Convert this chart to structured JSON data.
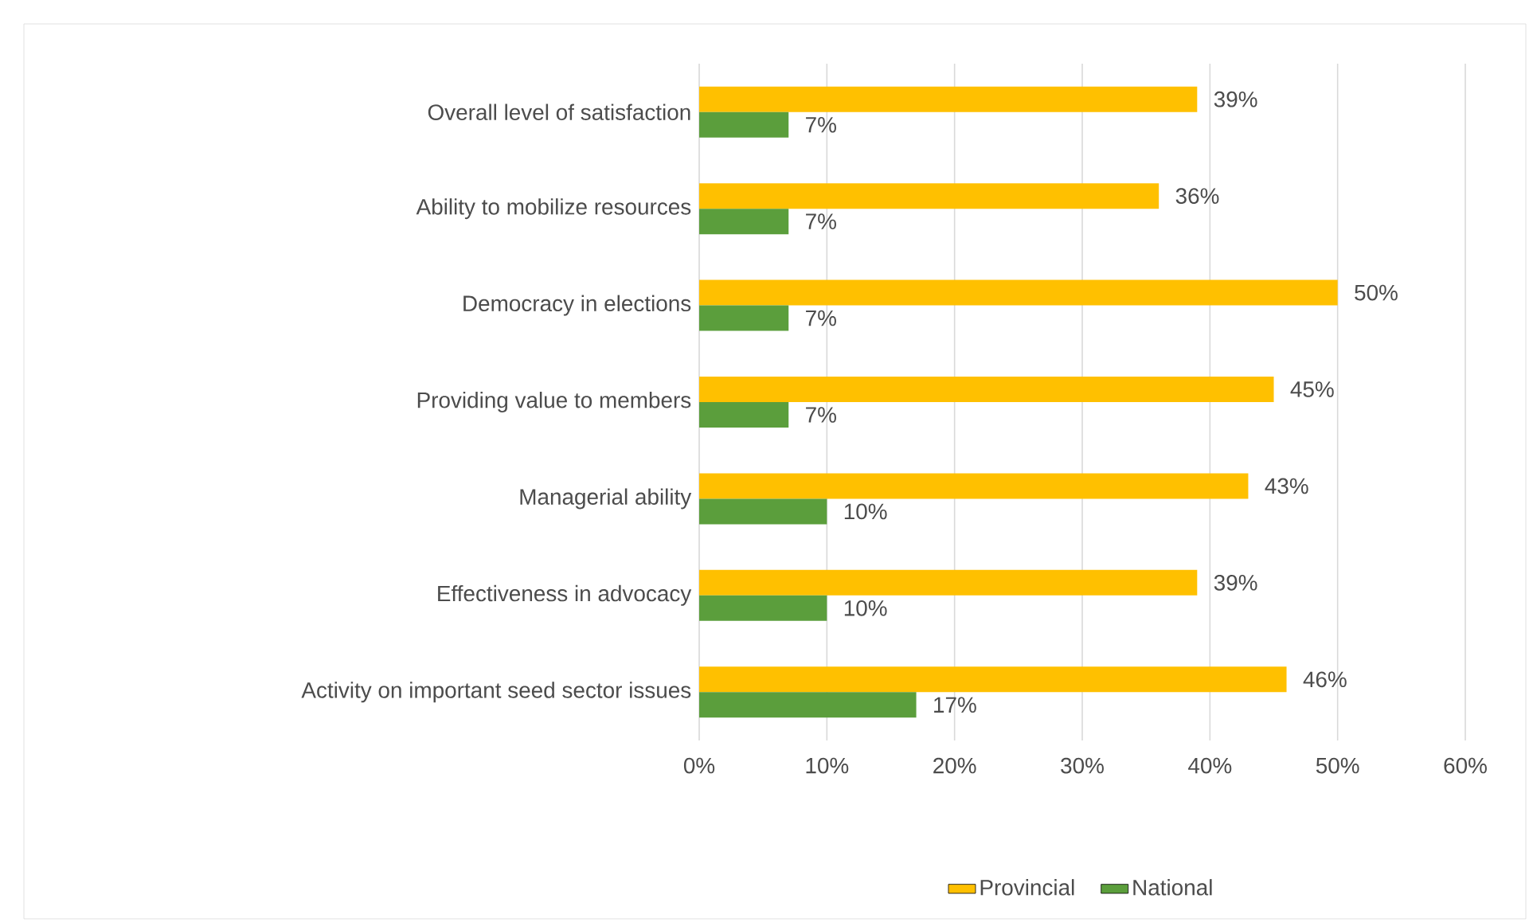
{
  "chart_data": {
    "type": "bar",
    "orientation": "horizontal",
    "categories": [
      "Overall level of satisfaction",
      "Ability to mobilize resources",
      "Democracy in elections",
      "Providing value to members",
      "Managerial ability",
      "Effectiveness in advocacy",
      "Activity on important seed sector issues"
    ],
    "series": [
      {
        "name": "Provincial",
        "color": "#ffc000",
        "values": [
          39,
          36,
          50,
          45,
          43,
          39,
          46
        ],
        "value_labels": [
          "39%",
          "36%",
          "50%",
          "45%",
          "43%",
          "39%",
          "46%"
        ]
      },
      {
        "name": "National",
        "color": "#5b9e3c",
        "values": [
          7,
          7,
          7,
          7,
          10,
          10,
          17
        ],
        "value_labels": [
          "7%",
          "7%",
          "7%",
          "7%",
          "10%",
          "10%",
          "17%"
        ]
      }
    ],
    "xlim": [
      0,
      60
    ],
    "xticks": [
      {
        "value": 0,
        "label": "0%"
      },
      {
        "value": 10,
        "label": "10%"
      },
      {
        "value": 20,
        "label": "20%"
      },
      {
        "value": 30,
        "label": "30%"
      },
      {
        "value": 40,
        "label": "40%"
      },
      {
        "value": 50,
        "label": "50%"
      },
      {
        "value": 60,
        "label": "60%"
      }
    ],
    "grid": "x",
    "legend": "bottom"
  }
}
